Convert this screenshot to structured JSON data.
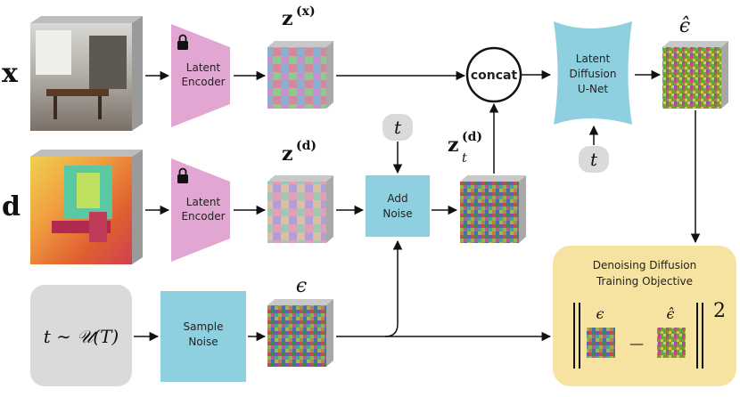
{
  "inputs": {
    "x_label": "x",
    "d_label": "d",
    "z_x_label": "z",
    "z_x_sup": "(x)",
    "z_d_label": "z",
    "z_d_sup": "(d)",
    "zt_label": "z",
    "zt_sup": "(d)",
    "zt_sub": "t",
    "eps_label": "ϵ",
    "eps_hat_label": "ϵ̂"
  },
  "blocks": {
    "encoder_line1": "Latent",
    "encoder_line2": "Encoder",
    "add_noise_line1": "Add",
    "add_noise_line2": "Noise",
    "sample_noise_line1": "Sample",
    "sample_noise_line2": "Noise",
    "concat": "concat",
    "unet_line1": "Latent",
    "unet_line2": "Diffusion",
    "unet_line3": "U-Net",
    "t_label": "t",
    "t_sample_label": "t ∼ 𝒰(T)"
  },
  "objective": {
    "title_line1": "Denoising Diffusion",
    "title_line2": "Training Objective",
    "eps": "ϵ",
    "eps_hat": "ϵ̂",
    "minus": "—",
    "square": "2"
  },
  "colors": {
    "encoder": "#e2a6d2",
    "process_box": "#8fd0e0",
    "unet": "#8fd0e0",
    "objective_bg": "#f7e3a1",
    "gray_box": "#dadada",
    "stroke": "#111111"
  },
  "icons": [
    "lock-icon",
    "lock-icon"
  ]
}
